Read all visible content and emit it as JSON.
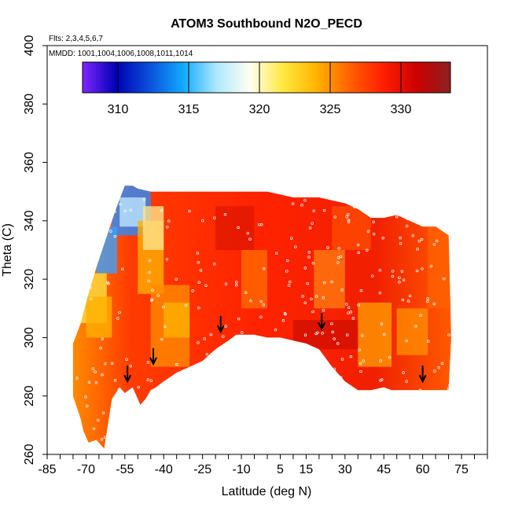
{
  "chart_data": {
    "type": "heatmap",
    "title": "ATOM3 Southbound N2O_PECD",
    "subtitle_flights": "Flts: 2,3,4,5,6,7",
    "subtitle_dates": "MMDD: 1001,1004,1006,1008,1011,1014",
    "xlabel": "Latitude (deg N)",
    "ylabel": "Theta (C)",
    "xlim": [
      -85,
      85
    ],
    "ylim": [
      260,
      400
    ],
    "x_ticks": [
      "-85",
      "-70",
      "-55",
      "-40",
      "-25",
      "-10",
      "5",
      "15",
      "30",
      "45",
      "60",
      "75"
    ],
    "y_ticks": [
      "260",
      "280",
      "300",
      "320",
      "340",
      "360",
      "380",
      "400"
    ],
    "colorbar": {
      "range": [
        307.5,
        333.5
      ],
      "ticks": [
        "310",
        "315",
        "320",
        "325",
        "330"
      ],
      "colors": [
        "#7f26ff",
        "#0000b4",
        "#0a50dc",
        "#10aaff",
        "#aee8ff",
        "#fffff0",
        "#ffe840",
        "#ffb400",
        "#ff6000",
        "#ff1e00",
        "#cc0000",
        "#8b2222"
      ]
    },
    "coverage_boundary": {
      "lat": [
        -75,
        -75,
        -72,
        -71,
        -69,
        -66,
        -63,
        -60,
        -57,
        -55,
        -52,
        -49,
        -47,
        -45,
        -43,
        -40,
        -35,
        -30,
        -25,
        -20,
        -15,
        -12,
        -10,
        -5,
        0,
        5,
        10,
        15,
        20,
        25,
        30,
        35,
        40,
        45,
        48,
        50,
        55,
        60,
        65,
        70,
        71,
        70,
        65,
        60,
        55,
        50,
        45,
        40,
        35,
        30,
        25,
        20,
        15,
        10,
        5,
        0,
        -5,
        -10,
        -15,
        -20,
        -25,
        -30,
        -35,
        -40,
        -45,
        -50,
        -52,
        -55,
        -58,
        -60,
        -63,
        -66,
        -69,
        -72,
        -75
      ],
      "theta": [
        285,
        280,
        272,
        268,
        264,
        265,
        262,
        279,
        283,
        281,
        283,
        277,
        279,
        282,
        283,
        285,
        288,
        290,
        292,
        296,
        299,
        301,
        301,
        301,
        300,
        300,
        299,
        298,
        296,
        290,
        285,
        282,
        282,
        283,
        282,
        282,
        282,
        282,
        282,
        282,
        300,
        335,
        338,
        338,
        340,
        342,
        341,
        341,
        344,
        346,
        347,
        348,
        348,
        348,
        349,
        350,
        350,
        350,
        350,
        350,
        350,
        350,
        350,
        350,
        350,
        351,
        352,
        352,
        345,
        340,
        332,
        324,
        315,
        305,
        298
      ]
    },
    "flight_arrows_lat": [
      -54,
      -44,
      -18,
      21,
      60
    ],
    "flight_arrows_theta": [
      285,
      291,
      302,
      303,
      285
    ]
  }
}
